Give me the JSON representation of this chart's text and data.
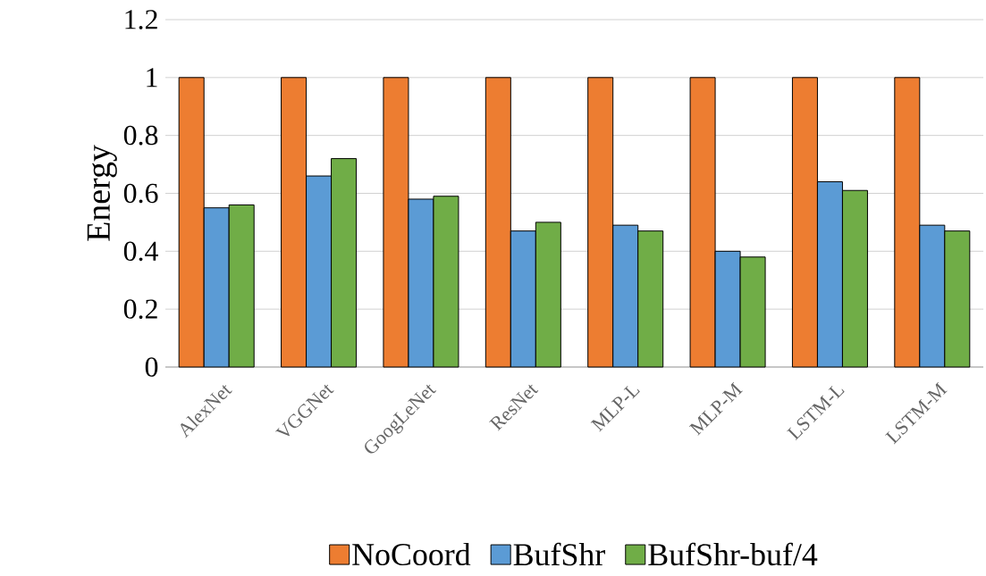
{
  "chart_data": {
    "type": "bar",
    "ylabel": "Energy",
    "categories": [
      "AlexNet",
      "VGGNet",
      "GoogLeNet",
      "ResNet",
      "MLP-L",
      "MLP-M",
      "LSTM-L",
      "LSTM-M"
    ],
    "series": [
      {
        "name": "NoCoord",
        "color": "#ed7d31",
        "values": [
          1,
          1,
          1,
          1,
          1,
          1,
          1,
          1
        ]
      },
      {
        "name": "BufShr",
        "color": "#5b9bd5",
        "values": [
          0.55,
          0.66,
          0.58,
          0.47,
          0.49,
          0.4,
          0.64,
          0.49
        ]
      },
      {
        "name": "BufShr-buf/4",
        "color": "#70ad47",
        "values": [
          0.56,
          0.72,
          0.59,
          0.5,
          0.47,
          0.38,
          0.61,
          0.47
        ]
      }
    ],
    "ylim": [
      0,
      1.2
    ],
    "yticks": [
      0,
      0.2,
      0.4,
      0.6,
      0.8,
      1,
      1.2
    ],
    "grid": "y",
    "legend": "bottom"
  }
}
